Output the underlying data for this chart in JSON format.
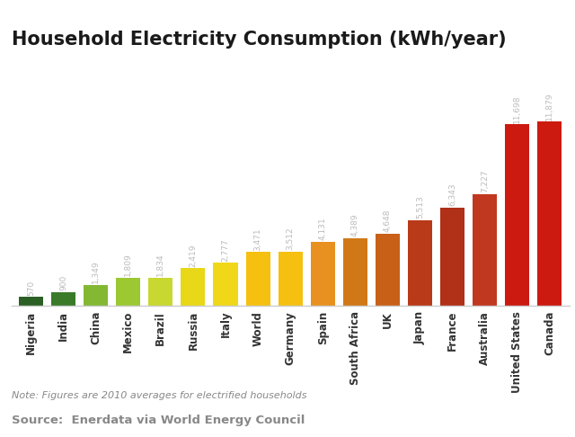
{
  "title": "Household Electricity Consumption (kWh/year)",
  "categories": [
    "Nigeria",
    "India",
    "China",
    "Mexico",
    "Brazil",
    "Russia",
    "Italy",
    "World",
    "Germany",
    "Spain",
    "South Africa",
    "UK",
    "Japan",
    "France",
    "Australia",
    "United States",
    "Canada"
  ],
  "values": [
    570,
    900,
    1349,
    1809,
    1834,
    2419,
    2777,
    3471,
    3512,
    4131,
    4389,
    4648,
    5513,
    6343,
    7227,
    11698,
    11879
  ],
  "bar_colors": [
    "#2a6023",
    "#3a7a28",
    "#82b832",
    "#9cc832",
    "#c8d830",
    "#e8d818",
    "#f0d818",
    "#f5c010",
    "#f5c010",
    "#e89020",
    "#d07818",
    "#c86018",
    "#b83a18",
    "#b03018",
    "#c03820",
    "#cc1a10",
    "#cc1a10"
  ],
  "value_labels": [
    "570",
    "900",
    "1,349",
    "1,809",
    "1,834",
    "2,419",
    "2,777",
    "3,471",
    "3,512",
    "4,131",
    "4,389",
    "4,648",
    "5,513",
    "6,343",
    "7,227",
    "11,698",
    "11,879"
  ],
  "note_text": "Note: Figures are 2010 averages for electrified households",
  "source_text": "Source:  Enerdata via World Energy Council",
  "background_color": "#ffffff",
  "label_color": "#bbbbbb",
  "note_color": "#888888",
  "title_color": "#1a1a1a",
  "axis_color": "#cccccc",
  "tick_color": "#333333"
}
